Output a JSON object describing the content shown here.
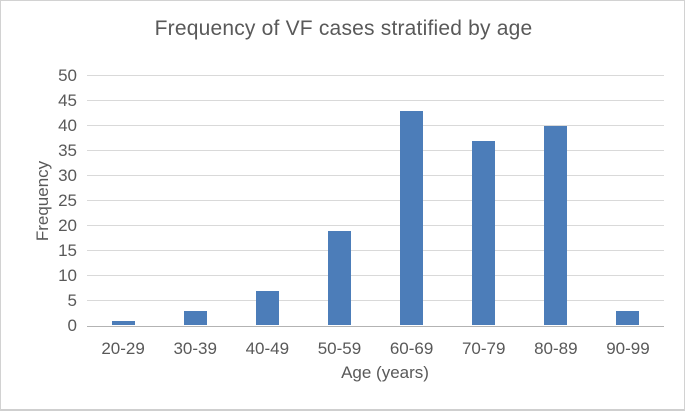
{
  "figure": {
    "title": "Frequency of VF cases stratified by age"
  },
  "chart_data": {
    "type": "bar",
    "title": "Frequency of VF cases stratified by age",
    "categories": [
      "20-29",
      "30-39",
      "40-49",
      "50-59",
      "60-69",
      "70-79",
      "80-89",
      "90-99"
    ],
    "values": [
      1,
      3,
      7,
      19,
      43,
      37,
      40,
      3
    ],
    "xlabel": "Age (years)",
    "ylabel": "Frequency",
    "ylim": [
      0,
      50
    ],
    "ytick_step": 5,
    "yticks": [
      0,
      5,
      10,
      15,
      20,
      25,
      30,
      35,
      40,
      45,
      50
    ],
    "grid": "horizontal-on",
    "legend": "none",
    "colors": {
      "bar_fill": "#4c7db9",
      "gridline": "#d9d9d9",
      "axis_line": "#b3b3b3",
      "text": "#595959",
      "figure_border": "#d2d2d2",
      "background": "#ffffff"
    }
  }
}
